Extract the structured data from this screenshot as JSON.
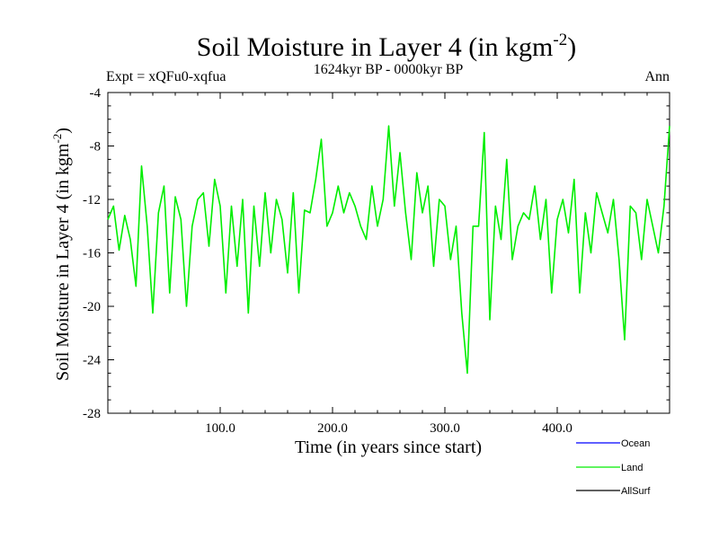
{
  "chart_data": {
    "type": "line",
    "title": "Soil Moisture in Layer 4 (in kgm",
    "title_sup": "-2",
    "title_close": ")",
    "subtitle": "1624kyr BP - 0000kyr BP",
    "left_label": "Expt = xQFu0-xqfua",
    "right_label": "Ann",
    "xlabel": "Time (in years since start)",
    "ylabel": "Soil Moisture in Layer 4 (in kgm",
    "ylabel_sup": "-2",
    "ylabel_close": ")",
    "xlim": [
      0,
      500
    ],
    "ylim": [
      -28,
      -4
    ],
    "x_ticks": [
      100,
      200,
      300,
      400
    ],
    "x_tick_labels": [
      "100.0",
      "200.0",
      "300.0",
      "400.0"
    ],
    "y_ticks": [
      -4,
      -8,
      -12,
      -16,
      -20,
      -24,
      -28
    ],
    "y_tick_labels": [
      "-4",
      "-8",
      "-12",
      "-16",
      "-20",
      "-24",
      "-28"
    ],
    "legend": [
      {
        "name": "Ocean",
        "color": "#0000ff"
      },
      {
        "name": "Land",
        "color": "#00ee00"
      },
      {
        "name": "AllSurf",
        "color": "#000000"
      }
    ],
    "series": [
      {
        "name": "Land",
        "color": "#00ee00",
        "x": [
          0,
          5,
          10,
          15,
          20,
          25,
          30,
          35,
          40,
          45,
          50,
          55,
          60,
          65,
          70,
          75,
          80,
          85,
          90,
          95,
          100,
          105,
          110,
          115,
          120,
          125,
          130,
          135,
          140,
          145,
          150,
          155,
          160,
          165,
          170,
          175,
          180,
          185,
          190,
          195,
          200,
          205,
          210,
          215,
          220,
          225,
          230,
          235,
          240,
          245,
          250,
          255,
          260,
          265,
          270,
          275,
          280,
          285,
          290,
          295,
          300,
          305,
          310,
          315,
          320,
          325,
          330,
          335,
          340,
          345,
          350,
          355,
          360,
          365,
          370,
          375,
          380,
          385,
          390,
          395,
          400,
          405,
          410,
          415,
          420,
          425,
          430,
          435,
          440,
          445,
          450,
          455,
          460,
          465,
          470,
          475,
          480,
          485,
          490,
          495,
          500
        ],
        "values": [
          -13.5,
          -12.5,
          -15.8,
          -13.2,
          -15.0,
          -18.5,
          -9.5,
          -14.0,
          -20.5,
          -13.0,
          -11.0,
          -19.0,
          -11.8,
          -13.5,
          -20.0,
          -14.0,
          -12.0,
          -11.5,
          -15.5,
          -10.5,
          -12.5,
          -19.0,
          -12.5,
          -17.0,
          -12.0,
          -20.5,
          -12.5,
          -17.0,
          -11.5,
          -16.0,
          -12.0,
          -13.5,
          -17.5,
          -11.5,
          -19.0,
          -12.8,
          -13.0,
          -10.5,
          -7.5,
          -14.0,
          -13.0,
          -11.0,
          -13.0,
          -11.5,
          -12.5,
          -14.0,
          -15.0,
          -11.0,
          -14.0,
          -12.0,
          -6.5,
          -12.5,
          -8.5,
          -13.0,
          -16.5,
          -10.0,
          -13.0,
          -11.0,
          -17.0,
          -12.0,
          -12.5,
          -16.5,
          -14.0,
          -20.5,
          -25.0,
          -14.0,
          -14.0,
          -7.0,
          -21.0,
          -12.5,
          -15.0,
          -9.0,
          -16.5,
          -14.0,
          -13.0,
          -13.5,
          -11.0,
          -15.0,
          -12.0,
          -19.0,
          -13.5,
          -12.0,
          -14.5,
          -10.5,
          -19.0,
          -13.0,
          -16.0,
          -11.5,
          -13.0,
          -14.5,
          -12.0,
          -16.5,
          -22.5,
          -12.5,
          -13.0,
          -16.5,
          -12.0,
          -14.0,
          -16.0,
          -12.5,
          -6.5
        ]
      }
    ]
  }
}
